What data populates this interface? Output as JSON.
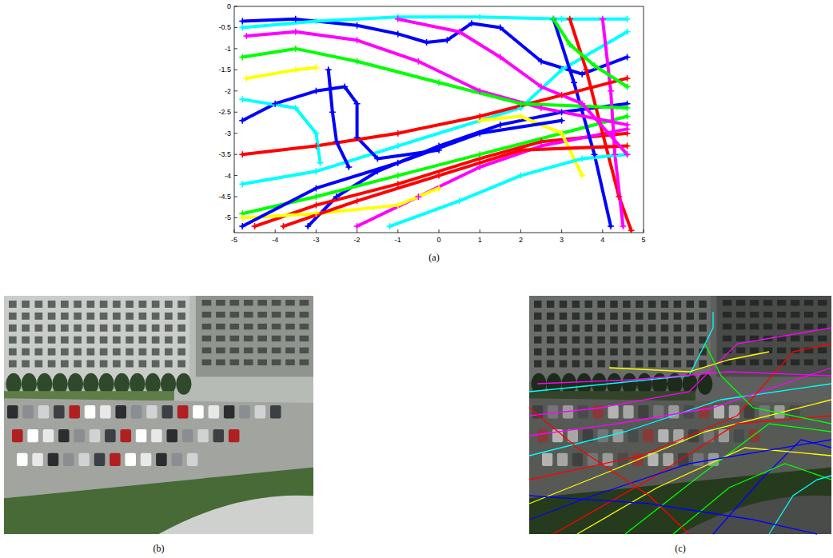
{
  "chart_data": {
    "type": "line",
    "caption": "(a)",
    "marker": "plus",
    "line_style": "solid",
    "xlim": [
      -5,
      5
    ],
    "ylim": [
      -5.35,
      0
    ],
    "xticks": [
      -5,
      -4,
      -3,
      -2,
      -1,
      0,
      1,
      2,
      3,
      4,
      5
    ],
    "yticks": [
      0,
      -0.5,
      -1,
      -1.5,
      -2,
      -2.5,
      -3,
      -3.5,
      -4,
      -4.5,
      -5
    ],
    "series": [
      {
        "color": "#0000ff",
        "x": [
          -4.8,
          -3.5,
          -2,
          -1,
          -0.3,
          0.2,
          0.8,
          1.5,
          2.5,
          3.5,
          4.6
        ],
        "values": [
          -0.35,
          -0.3,
          -0.45,
          -0.65,
          -0.85,
          -0.8,
          -0.4,
          -0.5,
          -1.3,
          -1.6,
          -1.2
        ]
      },
      {
        "color": "#00ffff",
        "x": [
          -4.8,
          -3,
          -1,
          1,
          3,
          4.6
        ],
        "values": [
          -0.5,
          -0.35,
          -0.25,
          -0.25,
          -0.3,
          -0.3
        ]
      },
      {
        "color": "#0000ff",
        "x": [
          -3.2,
          -2.5,
          -1.5,
          0,
          1.5,
          3,
          4.6
        ],
        "values": [
          -5.2,
          -4.5,
          -3.9,
          -3.3,
          -2.8,
          -2.5,
          -2.3
        ]
      },
      {
        "color": "#ff0000",
        "x": [
          -4.5,
          -3,
          -1,
          1,
          2.5,
          4.6
        ],
        "values": [
          -5.2,
          -4.7,
          -4.2,
          -3.6,
          -3.2,
          -3
        ]
      },
      {
        "color": "#00ff00",
        "x": [
          -4.8,
          -3,
          -1,
          1,
          3,
          4.6
        ],
        "values": [
          -4.9,
          -4.5,
          -4,
          -3.5,
          -3,
          -2.6
        ]
      },
      {
        "color": "#ff00ff",
        "x": [
          -2,
          -0.5,
          1,
          2.5,
          4.6
        ],
        "values": [
          -5.2,
          -4.5,
          -3.8,
          -3.3,
          -2.9
        ]
      },
      {
        "color": "#00ffff",
        "x": [
          -4.8,
          -3,
          -1,
          1,
          2,
          3,
          4.6
        ],
        "values": [
          -4.2,
          -3.9,
          -3.3,
          -2.7,
          -2.4,
          -1.5,
          -0.6
        ]
      },
      {
        "color": "#ffff00",
        "x": [
          -4.7,
          -3.5,
          -3
        ],
        "values": [
          -1.7,
          -1.5,
          -1.45
        ]
      },
      {
        "color": "#0000ff",
        "x": [
          -4.8,
          -4,
          -3,
          -2.3,
          -2,
          -2,
          -1.5,
          0
        ],
        "values": [
          -2.7,
          -2.3,
          -2,
          -1.9,
          -2.3,
          -3.1,
          -3.6,
          -3.4
        ]
      },
      {
        "color": "#ff0000",
        "x": [
          3.2,
          3.6,
          4,
          4.4,
          4.7
        ],
        "values": [
          -0.3,
          -1.5,
          -3,
          -4.5,
          -5.3
        ]
      },
      {
        "color": "#ff00ff",
        "x": [
          4,
          4.2,
          4.3,
          4.5
        ],
        "values": [
          -0.3,
          -2,
          -3.5,
          -5.2
        ]
      },
      {
        "color": "#0000ff",
        "x": [
          2.8,
          3.3,
          3.8,
          4.2
        ],
        "values": [
          -0.3,
          -1.8,
          -3.5,
          -5.2
        ]
      },
      {
        "color": "#ffff00",
        "x": [
          -4.8,
          -3,
          -1,
          0
        ],
        "values": [
          -5,
          -4.9,
          -4.7,
          -4.3
        ]
      },
      {
        "color": "#ffff00",
        "x": [
          1,
          2,
          3,
          3.5
        ],
        "values": [
          -2.7,
          -2.6,
          -3,
          -4
        ]
      },
      {
        "color": "#ff0000",
        "x": [
          -4.8,
          -3,
          -1,
          1,
          3,
          4.6
        ],
        "values": [
          -3.5,
          -3.3,
          -3,
          -2.6,
          -2.1,
          -1.7
        ]
      },
      {
        "color": "#00ffff",
        "x": [
          -1.2,
          0.5,
          2,
          3.5,
          4.6
        ],
        "values": [
          -5.2,
          -4.6,
          -4,
          -3.6,
          -3.5
        ]
      },
      {
        "color": "#00ff00",
        "x": [
          2.8,
          3.2,
          3.8,
          4.6
        ],
        "values": [
          -0.3,
          -0.9,
          -1.4,
          -1.9
        ]
      },
      {
        "color": "#ff00ff",
        "x": [
          -4.7,
          -3.5,
          -2,
          -0.5,
          1,
          2.5,
          4.6
        ],
        "values": [
          -0.7,
          -0.6,
          -0.8,
          -1.3,
          -2,
          -2.4,
          -2.8
        ]
      },
      {
        "color": "#00ff00",
        "x": [
          -4.8,
          -3.5,
          -2,
          0,
          2,
          4.6
        ],
        "values": [
          -1.2,
          -1,
          -1.3,
          -1.8,
          -2.3,
          -2.4
        ]
      },
      {
        "color": "#0000ff",
        "x": [
          -2.7,
          -2.6,
          -2.5,
          -2.2
        ],
        "values": [
          -1.5,
          -2.5,
          -3.2,
          -3.8
        ]
      },
      {
        "color": "#00ffff",
        "x": [
          -4.8,
          -3.5,
          -3,
          -2.9
        ],
        "values": [
          -2.2,
          -2.4,
          -3,
          -3.7
        ]
      },
      {
        "color": "#ff0000",
        "x": [
          -3.8,
          -2,
          0,
          2,
          4.6
        ],
        "values": [
          -5.2,
          -4.6,
          -4,
          -3.4,
          -3.3
        ]
      },
      {
        "color": "#0000ff",
        "x": [
          -4.8,
          -3,
          -1,
          1,
          3
        ],
        "values": [
          -5.2,
          -4.3,
          -3.7,
          -3,
          -2.7
        ]
      },
      {
        "color": "#ff00ff",
        "x": [
          -1,
          0.5,
          1.5,
          2.5,
          3.5,
          4.6
        ],
        "values": [
          -0.3,
          -0.6,
          -1.2,
          -1.9,
          -2.3,
          -3.5
        ]
      }
    ]
  },
  "images": [
    {
      "caption": "(b)"
    },
    {
      "caption": "(c)"
    }
  ]
}
